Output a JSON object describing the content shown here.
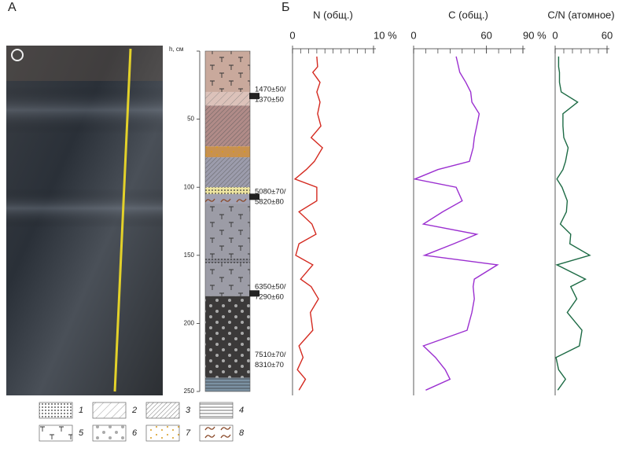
{
  "labels": {
    "a": "А",
    "b": "Б"
  },
  "column": {
    "axis_label": "h, см",
    "ylim": [
      0,
      250
    ],
    "yticks": [
      0,
      50,
      100,
      150,
      200,
      250
    ],
    "layers": [
      {
        "top": 0,
        "bottom": 30,
        "color": "#c9a99c",
        "pattern": "5"
      },
      {
        "top": 30,
        "bottom": 40,
        "color": "#dcc2ba",
        "pattern": "2"
      },
      {
        "top": 40,
        "bottom": 70,
        "color": "#b08b88",
        "pattern": "3"
      },
      {
        "top": 70,
        "bottom": 78,
        "color": "#c8914f",
        "pattern": "7"
      },
      {
        "top": 78,
        "bottom": 100,
        "color": "#9c9cac",
        "pattern": "3"
      },
      {
        "top": 100,
        "bottom": 105,
        "color": "#eee5a0",
        "pattern": "1"
      },
      {
        "top": 105,
        "bottom": 112,
        "color": "#a2a2b2",
        "pattern": "8"
      },
      {
        "top": 112,
        "bottom": 152,
        "color": "#9c9ca6",
        "pattern": "5"
      },
      {
        "top": 152,
        "bottom": 156,
        "color": "#8c8c96",
        "pattern": "1"
      },
      {
        "top": 156,
        "bottom": 180,
        "color": "#9c9ca6",
        "pattern": "5"
      },
      {
        "top": 180,
        "bottom": 240,
        "color": "#3b3939",
        "pattern": "6"
      },
      {
        "top": 240,
        "bottom": 250,
        "color": "#7b91a2",
        "pattern": "4"
      }
    ],
    "dates": [
      {
        "lines": [
          "1470±50/",
          "1370±50"
        ],
        "depth": 32,
        "marker": 33
      },
      {
        "lines": [
          "5080±70/",
          "5820±80"
        ],
        "depth": 107,
        "marker": 107
      },
      {
        "lines": [
          "6350±50/",
          "7290±60"
        ],
        "depth": 177,
        "marker": 178
      },
      {
        "lines": [
          "7510±70/",
          "8310±70"
        ],
        "depth": 227
      }
    ]
  },
  "legend": [
    "1",
    "2",
    "3",
    "4",
    "5",
    "6",
    "7",
    "8"
  ],
  "chart_data": [
    {
      "type": "line",
      "title": "N (общ.)",
      "xlim": [
        0,
        10
      ],
      "xticks": [
        0,
        {
          "value": 10,
          "label": "10 %"
        }
      ],
      "depth": [
        4,
        11.5,
        15.6,
        23,
        30,
        37.5,
        46,
        55,
        63.5,
        71,
        81,
        87,
        94,
        100,
        110,
        118,
        127,
        134.5,
        141.5,
        150,
        157,
        167.5,
        173,
        182,
        192,
        205,
        216.5,
        225,
        234,
        241,
        249
      ],
      "series": [
        {
          "color": "#d42a20",
          "values": [
            3.0,
            3.1,
            2.5,
            3.4,
            3.0,
            3.4,
            3.1,
            3.5,
            2.3,
            3.7,
            2.7,
            1.7,
            0.3,
            3.0,
            3.0,
            0.8,
            2.4,
            2.9,
            0.8,
            0.4,
            2.5,
            1.0,
            2.3,
            3.2,
            2.2,
            2.5,
            0.8,
            1.3,
            0.6,
            1.6,
            0.8
          ]
        }
      ]
    },
    {
      "type": "line",
      "title": "C (общ.)",
      "xlim": [
        0,
        90
      ],
      "xticks": [
        0,
        60,
        {
          "value": 90,
          "label": "90 %"
        }
      ],
      "depth": [
        4,
        11.5,
        15.6,
        23,
        30,
        37.5,
        46,
        55,
        63.5,
        71,
        81,
        87,
        94,
        100,
        110,
        118,
        127,
        134.5,
        141.5,
        150,
        157,
        167.5,
        173,
        182,
        192,
        205,
        216.5,
        225,
        234,
        241,
        249
      ],
      "series": [
        {
          "color": "#9b2fd0",
          "values": [
            35,
            37,
            38,
            43,
            47,
            48,
            54,
            52,
            50,
            49,
            46,
            20,
            1,
            35,
            40,
            24,
            8,
            52,
            33,
            9,
            69,
            50,
            49,
            50,
            48,
            44,
            8,
            18,
            26,
            30,
            10
          ]
        }
      ]
    },
    {
      "type": "line",
      "title": "C/N (атомное)",
      "xlim": [
        0,
        60
      ],
      "xticks": [
        0,
        60
      ],
      "depth": [
        4,
        11.5,
        15.6,
        23,
        30,
        37.5,
        46,
        55,
        63.5,
        71,
        81,
        87,
        94,
        100,
        110,
        118,
        127,
        134.5,
        141.5,
        150,
        157,
        167.5,
        173,
        182,
        192,
        205,
        216.5,
        225,
        234,
        241,
        249
      ],
      "series": [
        {
          "color": "#1d6b45",
          "values": [
            4,
            4,
            5,
            5,
            7,
            26,
            9,
            9,
            10,
            15,
            12,
            9,
            2,
            8,
            14,
            13,
            6,
            18,
            17,
            40,
            2,
            35,
            18,
            25,
            14,
            31,
            28,
            1,
            4,
            12,
            3
          ]
        }
      ]
    }
  ]
}
